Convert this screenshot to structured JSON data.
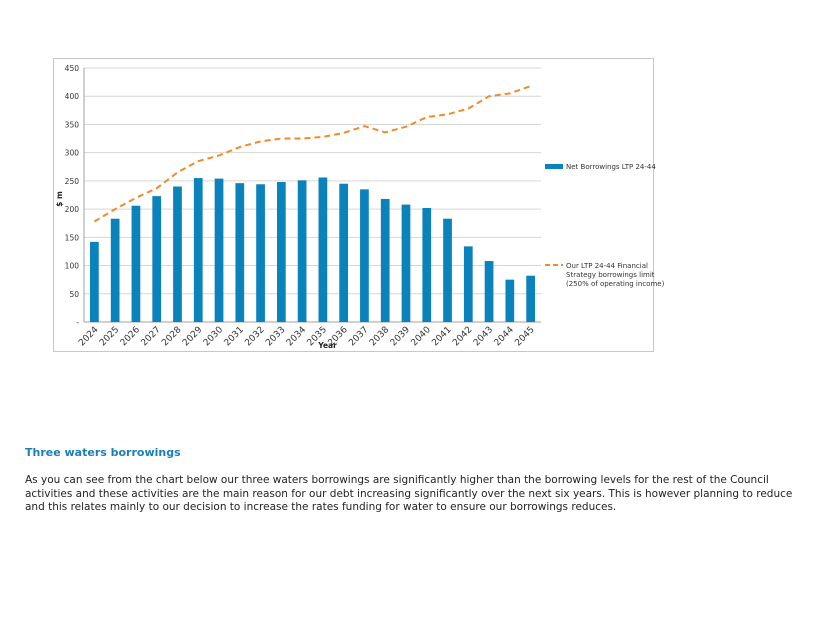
{
  "chart_data": {
    "type": "bar",
    "title": "",
    "xlabel": "Year",
    "ylabel": "$ m",
    "ylim": [
      0,
      450
    ],
    "y_ticks": [
      "-",
      "50",
      "100",
      "150",
      "200",
      "250",
      "300",
      "350",
      "400",
      "450"
    ],
    "y_tick_values": [
      0,
      50,
      100,
      150,
      200,
      250,
      300,
      350,
      400,
      450
    ],
    "grid": true,
    "legend_position": "right",
    "categories": [
      "2024",
      "2025",
      "2026",
      "2027",
      "2028",
      "2029",
      "2030",
      "2031",
      "2032",
      "2033",
      "2034",
      "2035",
      "2036",
      "2037",
      "2038",
      "2039",
      "2040",
      "2041",
      "2042",
      "2043",
      "2044",
      "2045"
    ],
    "series": [
      {
        "name": "Net Borrowings LTP 24-44",
        "type": "bar",
        "color": "#0a82bb",
        "values": [
          142,
          183,
          206,
          223,
          240,
          255,
          254,
          246,
          244,
          248,
          251,
          256,
          245,
          235,
          218,
          208,
          202,
          183,
          134,
          108,
          75,
          82
        ]
      },
      {
        "name_lines": [
          "Our LTP 24-44 Financial",
          "Strategy borrowings limit",
          "(250% of operating income)"
        ],
        "type": "line",
        "style": "dashed",
        "color": "#f28a2b",
        "values": [
          178,
          200,
          220,
          237,
          265,
          285,
          295,
          310,
          320,
          325,
          325,
          328,
          335,
          347,
          336,
          346,
          363,
          368,
          378,
          400,
          405,
          418
        ]
      }
    ]
  },
  "section": {
    "heading": "Three waters borrowings",
    "paragraph": "As you can see from the chart below our three waters borrowings are significantly higher than the borrowing levels for the rest of the Council activities and these activities are the main reason for our debt increasing significantly over the next six years. This is however planning to reduce and this relates mainly to our decision to increase the rates funding for water to ensure our borrowings reduces."
  }
}
